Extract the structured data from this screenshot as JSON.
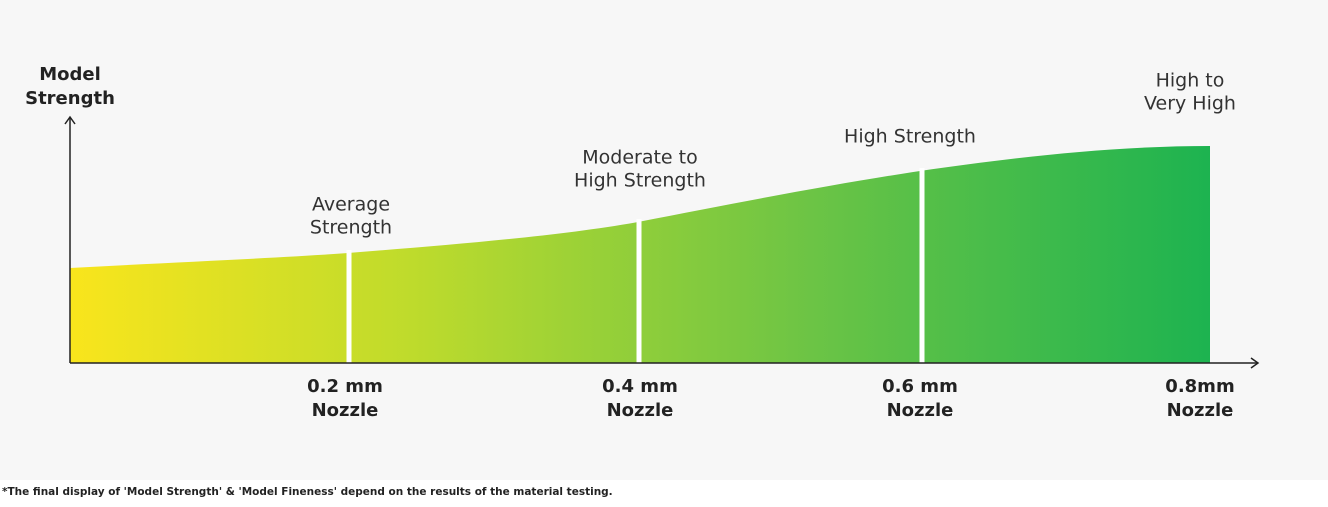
{
  "y_axis_label": [
    "Model",
    "Strength"
  ],
  "strengths": [
    [
      "Average",
      "Strength"
    ],
    [
      "Moderate to",
      "High Strength"
    ],
    [
      "High Strength"
    ],
    [
      "High to",
      "Very High"
    ]
  ],
  "nozzles": [
    [
      "0.2 mm",
      "Nozzle"
    ],
    [
      "0.4 mm",
      "Nozzle"
    ],
    [
      "0.6 mm",
      "Nozzle"
    ],
    [
      "0.8mm",
      "Nozzle"
    ]
  ],
  "footnote": "*The final display of 'Model Strength' & 'Model Fineness' depend on the results of the material testing."
}
